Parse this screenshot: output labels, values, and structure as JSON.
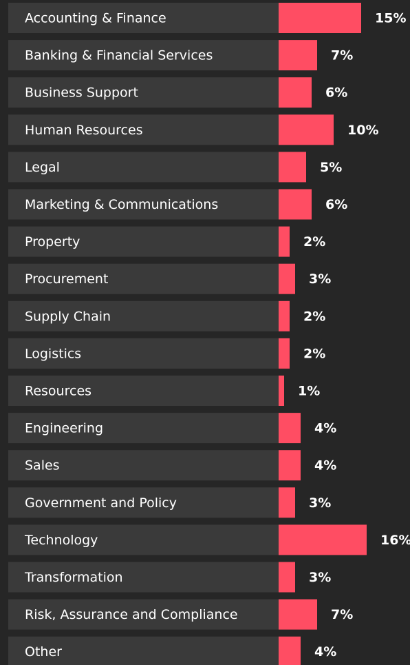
{
  "chart_data": {
    "type": "bar",
    "orientation": "horizontal",
    "color": "#ff4d63",
    "categories": [
      "Accounting & Finance",
      "Banking & Financial Services",
      "Business Support",
      "Human Resources",
      "Legal",
      "Marketing & Communications",
      "Property",
      "Procurement",
      "Supply Chain",
      "Logistics",
      "Resources",
      "Engineering",
      "Sales",
      "Government and Policy",
      "Technology",
      "Transformation",
      "Risk, Assurance and Compliance",
      "Other"
    ],
    "values": [
      15,
      7,
      6,
      10,
      5,
      6,
      2,
      3,
      2,
      2,
      1,
      4,
      4,
      3,
      16,
      3,
      7,
      4
    ],
    "value_labels": [
      "15%",
      "7%",
      "6%",
      "10%",
      "5%",
      "6%",
      "2%",
      "3%",
      "2%",
      "2%",
      "1%",
      "4%",
      "4%",
      "3%",
      "16%",
      "3%",
      "7%",
      "4%"
    ]
  }
}
